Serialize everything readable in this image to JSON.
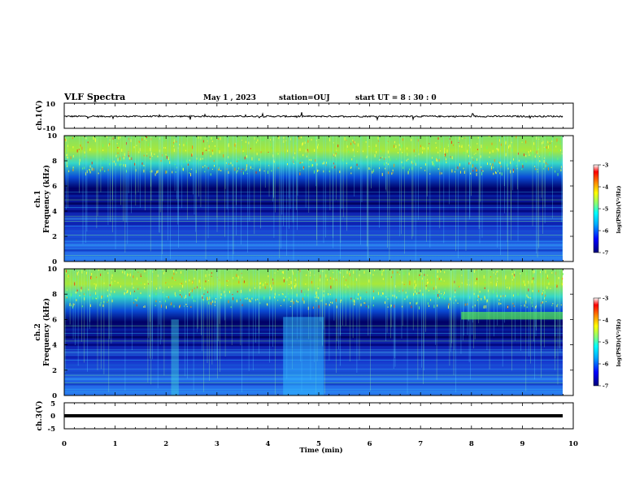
{
  "header": {
    "title": "VLF Spectra",
    "date": "May 1 , 2023",
    "station": "station=OUJ",
    "start": "start UT = 8 : 30 : 0"
  },
  "colors": {
    "colormap": [
      "#00007a",
      "#0000ff",
      "#00aaff",
      "#00ffff",
      "#7fff7f",
      "#ffff00",
      "#ff8800",
      "#ff0000",
      "#ffffff"
    ]
  },
  "chart_data": [
    {
      "type": "line",
      "panel": "ch1-waveform",
      "ylabel": "ch.1(V)",
      "yticklabels": [
        "10",
        "-10"
      ],
      "ylim": [
        -10,
        10
      ],
      "x": [
        0,
        10
      ],
      "values": [
        -0.5,
        -0.5
      ],
      "note": "noisy waveform near -0.5 V"
    },
    {
      "type": "heatmap",
      "panel": "ch1-spectrogram",
      "ylabel": "ch.1\nFrequency (kHz)",
      "yticklabels": [
        "0",
        "2",
        "4",
        "6",
        "8",
        "10"
      ],
      "ylim": [
        0,
        10
      ],
      "xlim": [
        0,
        10
      ],
      "colorbar": {
        "label": "log(PSD)(V²/Hz)",
        "ticks": [
          "-3",
          "-4",
          "-5",
          "-6",
          "-7"
        ]
      }
    },
    {
      "type": "heatmap",
      "panel": "ch2-spectrogram",
      "ylabel": "ch.2\nFrequency (kHz)",
      "yticklabels": [
        "0",
        "2",
        "4",
        "6",
        "8",
        "10"
      ],
      "ylim": [
        0,
        10
      ],
      "xlim": [
        0,
        10
      ],
      "colorbar": {
        "label": "log(PSD)(V²/Hz)",
        "ticks": [
          "-3",
          "-4",
          "-5",
          "-6",
          "-7"
        ]
      }
    },
    {
      "type": "line",
      "panel": "ch3-waveform",
      "ylabel": "ch.3(V)",
      "yticklabels": [
        "5",
        "0",
        "-5"
      ],
      "ylim": [
        -5,
        5
      ],
      "x": [
        0,
        10
      ],
      "values": [
        0,
        0
      ]
    }
  ],
  "xaxis": {
    "label": "Time (min)",
    "ticks": [
      "0",
      "1",
      "2",
      "3",
      "4",
      "5",
      "6",
      "7",
      "8",
      "9",
      "10"
    ]
  }
}
